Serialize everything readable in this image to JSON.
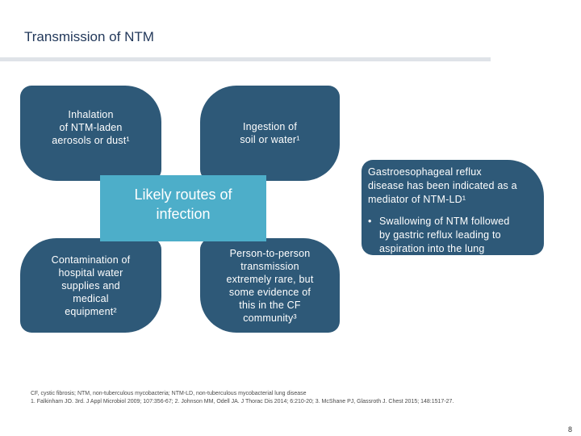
{
  "slide": {
    "title": "Transmission of NTM",
    "boxes": {
      "top_left": "Inhalation\nof NTM-laden\naerosols or dust¹",
      "top_right": "Ingestion of\nsoil or water¹",
      "bottom_left": "Contamination of\nhospital water\nsupplies and\nmedical\nequipment²",
      "bottom_right": "Person-to-person\ntransmission\nextremely rare, but\nsome evidence of\nthis in the CF\ncommunity³"
    },
    "center_label": "Likely routes of\ninfection",
    "side_panel": {
      "intro": "Gastroesophageal reflux\ndisease has been indicated as a\nmediator of NTM-LD¹",
      "bullet_mark": "•",
      "bullet": "Swallowing of NTM followed\nby gastric reflux leading to\naspiration into the lung"
    },
    "footnotes": {
      "abbreviations": "CF, cystic fibrosis; NTM, non-tuberculous mycobacteria; NTM-LD, non-tuberculous mycobacterial lung disease",
      "references": "1. Falkinham JO. 3rd. J Appl Microbiol 2009; 107:356-67; 2. Johnson MM, Odell JA. J Thorac Dis 2014; 6:210-20; 3. McShane PJ, Glassroth J. Chest 2015; 148:1517-27."
    },
    "page_number": "8"
  }
}
